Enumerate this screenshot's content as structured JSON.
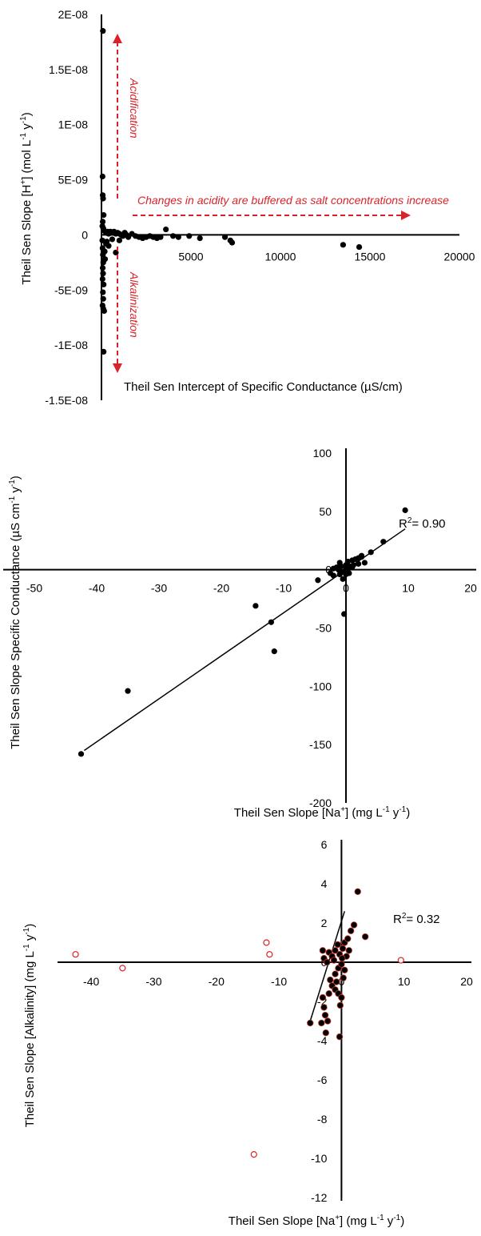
{
  "chart_data": [
    {
      "type": "scatter",
      "xlabel": "Theil Sen Intercept of Specific Conductance (µS/cm)",
      "ylabel": "Theil Sen Slope [H+] (mol L-1 y-1)",
      "ylabel_parts": [
        "Theil Sen Slope [H",
        "+",
        "] (mol L",
        "-1",
        " y",
        "-1",
        ")"
      ],
      "xlim": [
        0,
        20000
      ],
      "ylim": [
        -1.5e-08,
        2e-08
      ],
      "xticks": [
        "5000",
        "10000",
        "15000",
        "20000"
      ],
      "yticks": [
        "2E-08",
        "1.5E-08",
        "1E-08",
        "5E-09",
        "0",
        "-5E-09",
        "-1E-08",
        "-1.5E-08"
      ],
      "annotations": [
        "Acidification",
        "Alkalinization",
        "Changes in acidity are buffered as salt concentrations increase"
      ],
      "annotation_color": "#d9232b",
      "series": [
        {
          "color": "#000000",
          "points": [
            [
              80,
              1.85e-08
            ],
            [
              60,
              5.3e-09
            ],
            [
              70,
              3.6e-09
            ],
            [
              90,
              3.3e-09
            ],
            [
              120,
              1.8e-09
            ],
            [
              70,
              1.2e-09
            ],
            [
              50,
              8e-10
            ],
            [
              100,
              6e-10
            ],
            [
              150,
              4e-10
            ],
            [
              200,
              3e-10
            ],
            [
              300,
              2e-10
            ],
            [
              350,
              3e-10
            ],
            [
              400,
              1e-10
            ],
            [
              450,
              2e-10
            ],
            [
              500,
              3e-10
            ],
            [
              600,
              2e-10
            ],
            [
              700,
              3e-10
            ],
            [
              800,
              1e-10
            ],
            [
              900,
              2e-10
            ],
            [
              1000,
              1e-10
            ],
            [
              1100,
              0
            ],
            [
              1200,
              -1e-10
            ],
            [
              1300,
              2e-10
            ],
            [
              1400,
              0
            ],
            [
              1500,
              -2e-10
            ],
            [
              1700,
              1e-10
            ],
            [
              1900,
              -1e-10
            ],
            [
              2100,
              -2e-10
            ],
            [
              2300,
              -3e-10
            ],
            [
              2500,
              -2e-10
            ],
            [
              2700,
              -1e-10
            ],
            [
              2900,
              -2e-10
            ],
            [
              3100,
              -3e-10
            ],
            [
              3300,
              -2e-10
            ],
            [
              3600,
              5e-10
            ],
            [
              4000,
              -1e-10
            ],
            [
              4300,
              -2e-10
            ],
            [
              4900,
              -1e-10
            ],
            [
              5500,
              -3e-10
            ],
            [
              6900,
              -2e-10
            ],
            [
              7200,
              -5e-10
            ],
            [
              7300,
              -7e-10
            ],
            [
              13500,
              -9e-10
            ],
            [
              14400,
              -1.1e-09
            ],
            [
              50,
              -5e-10
            ],
            [
              60,
              -1.2e-09
            ],
            [
              80,
              -1.8e-09
            ],
            [
              100,
              -2.5e-09
            ],
            [
              70,
              -3e-09
            ],
            [
              90,
              -3.5e-09
            ],
            [
              60,
              -4e-09
            ],
            [
              120,
              -4.5e-09
            ],
            [
              80,
              -5.2e-09
            ],
            [
              100,
              -5.8e-09
            ],
            [
              60,
              -6.4e-09
            ],
            [
              100,
              -6.7e-09
            ],
            [
              150,
              -6.9e-09
            ],
            [
              120,
              -1.06e-08
            ],
            [
              180,
              -1.5e-09
            ],
            [
              200,
              -2.2e-09
            ],
            [
              250,
              -8e-10
            ],
            [
              300,
              -6e-10
            ],
            [
              400,
              -1e-09
            ],
            [
              600,
              -4e-10
            ],
            [
              1000,
              -5e-10
            ],
            [
              800,
              -1.6e-09
            ]
          ]
        }
      ]
    },
    {
      "type": "scatter",
      "xlabel": "Theil Sen Slope [Na+] (mg L-1 y-1)",
      "xlabel_parts": [
        "Theil Sen Slope [Na",
        "+",
        "] (mg L",
        "-1",
        " y",
        "-1",
        ")"
      ],
      "ylabel": "Theil Sen Slope Specific Conductance (µS cm-1 y-1)",
      "ylabel_parts": [
        "Theil Sen Slope Specific Conductance (µS cm",
        "-1",
        " y",
        "-1",
        ")"
      ],
      "xlim": [
        -50,
        20
      ],
      "ylim": [
        -200,
        100
      ],
      "xticks": [
        "-50",
        "-40",
        "-30",
        "-20",
        "-10",
        "0",
        "10",
        "20"
      ],
      "yticks": [
        "100",
        "50",
        "0",
        "-50",
        "-100",
        "-150",
        "-200"
      ],
      "r2": "= 0.90",
      "trendline": [
        [
          -42,
          -155
        ],
        [
          9.5,
          35
        ]
      ],
      "series": [
        {
          "color": "#000000",
          "points": [
            [
              -42.5,
              -158
            ],
            [
              -35,
              -104
            ],
            [
              -14.5,
              -31
            ],
            [
              -12,
              -45
            ],
            [
              -11.5,
              -70
            ],
            [
              -4.5,
              -9
            ],
            [
              -2.5,
              -3
            ],
            [
              -2,
              -5
            ],
            [
              -1.5,
              2
            ],
            [
              -1,
              -4
            ],
            [
              -1,
              6
            ],
            [
              -0.5,
              -2
            ],
            [
              -0.5,
              -8
            ],
            [
              0,
              1
            ],
            [
              0,
              -4
            ],
            [
              0,
              4
            ],
            [
              0.3,
              7
            ],
            [
              0.5,
              -3
            ],
            [
              0.5,
              3
            ],
            [
              1,
              8
            ],
            [
              1,
              2
            ],
            [
              1.5,
              9
            ],
            [
              2,
              5
            ],
            [
              2,
              10
            ],
            [
              2.5,
              11
            ],
            [
              3,
              6
            ],
            [
              -0.3,
              -38
            ],
            [
              2.5,
              12
            ],
            [
              4,
              15
            ],
            [
              6,
              24
            ],
            [
              9.5,
              51
            ],
            [
              -1.2,
              0
            ],
            [
              -0.8,
              3
            ],
            [
              0.2,
              -1
            ],
            [
              -2,
              1
            ],
            [
              1.2,
              4
            ]
          ]
        }
      ]
    },
    {
      "type": "scatter",
      "xlabel": "Theil Sen Slope [Na+] (mg L-1 y-1)",
      "xlabel_parts": [
        "Theil Sen Slope [Na",
        "+",
        "] (mg L",
        "-1",
        " y",
        "-1",
        ")"
      ],
      "ylabel": "Theil Sen Slope [Alkalinity] (mg L-1 y-1)",
      "ylabel_parts": [
        "Theil Sen Slope [Alkalinity] (mg L",
        "-1",
        " y",
        "-1",
        ")"
      ],
      "xlim": [
        -45,
        20
      ],
      "ylim": [
        -12,
        6
      ],
      "xticks": [
        "-40",
        "-30",
        "-20",
        "-10",
        "0",
        "10",
        "20"
      ],
      "yticks": [
        "6",
        "4",
        "2",
        "0",
        "-2",
        "-4",
        "-6",
        "-8",
        "-10",
        "-12"
      ],
      "r2": "= 0.32",
      "trendline": [
        [
          -5,
          -3
        ],
        [
          0.5,
          2.6
        ]
      ],
      "series": [
        {
          "style": "filled",
          "color": "#000000",
          "edge": "#c0392b",
          "points": [
            [
              -5,
              -3.1
            ],
            [
              -3.2,
              -3.1
            ],
            [
              -2.5,
              -3.6
            ],
            [
              -0.3,
              -3.8
            ],
            [
              -2.8,
              -2.3
            ],
            [
              -2.6,
              -2.7
            ],
            [
              -2.2,
              -3
            ],
            [
              -3,
              -1.8
            ],
            [
              -2,
              -1.6
            ],
            [
              -1.5,
              -1.2
            ],
            [
              -1,
              -1.4
            ],
            [
              -0.5,
              -1.6
            ],
            [
              0,
              -1.8
            ],
            [
              -0.2,
              -2.2
            ],
            [
              -1.8,
              -0.9
            ],
            [
              -1,
              -0.6
            ],
            [
              -0.5,
              -0.3
            ],
            [
              0,
              -0.1
            ],
            [
              0.5,
              -0.4
            ],
            [
              -2.8,
              0.2
            ],
            [
              -2,
              0.5
            ],
            [
              -1.5,
              0.3
            ],
            [
              -1,
              0.6
            ],
            [
              -0.3,
              0.4
            ],
            [
              0.2,
              0.7
            ],
            [
              0.5,
              1
            ],
            [
              1,
              1.2
            ],
            [
              1.5,
              1.6
            ],
            [
              2,
              1.9
            ],
            [
              2.6,
              3.6
            ],
            [
              3.8,
              1.3
            ],
            [
              -3,
              0.6
            ],
            [
              -2.3,
              0
            ],
            [
              -1.2,
              0.1
            ],
            [
              0.8,
              0.3
            ],
            [
              0.3,
              -0.8
            ],
            [
              -0.8,
              -1
            ],
            [
              0.1,
              0.2
            ],
            [
              -0.6,
              0.9
            ],
            [
              1.2,
              0.6
            ]
          ]
        },
        {
          "style": "hollow",
          "color": "#d9232b",
          "points": [
            [
              -42.5,
              0.4
            ],
            [
              -35,
              -0.3
            ],
            [
              -12,
              1
            ],
            [
              -11.5,
              0.4
            ],
            [
              -14,
              -9.8
            ],
            [
              9.5,
              0.1
            ]
          ]
        }
      ]
    }
  ]
}
